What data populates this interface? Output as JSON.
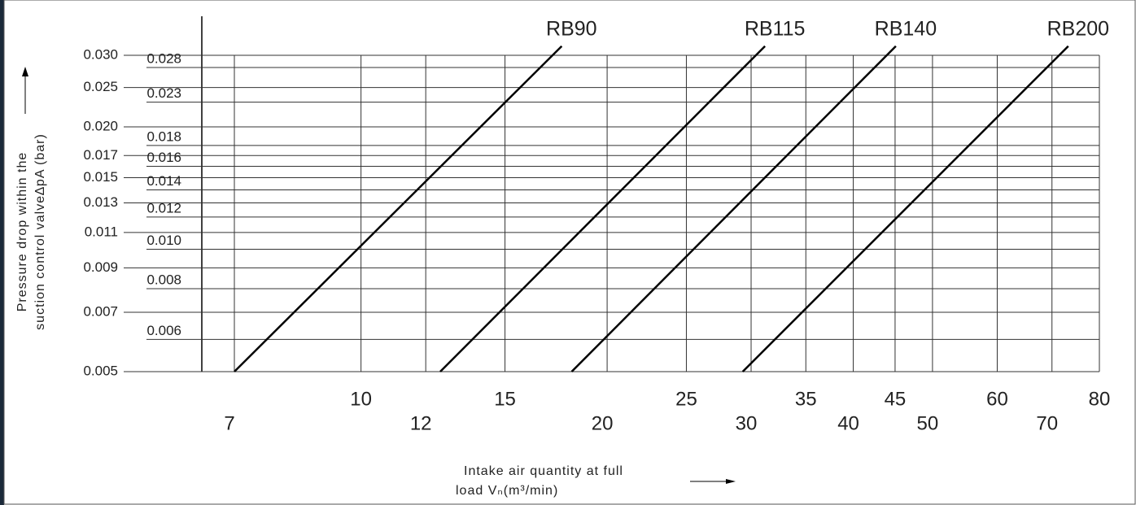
{
  "chart_data": {
    "type": "line",
    "x_label": [
      "Intake air quantity at full",
      "load Vₙ(m³/min)"
    ],
    "y_label": [
      "Pressure drop within the",
      "suction control valve∆pA (bar)"
    ],
    "xscale": "log",
    "yscale": "log",
    "grid": true,
    "xlim": [
      7,
      80
    ],
    "xticks": [
      7,
      10,
      12,
      15,
      20,
      25,
      30,
      35,
      40,
      45,
      50,
      60,
      70,
      80
    ],
    "ylim": [
      0.005,
      0.03
    ],
    "yticks": [
      {
        "value": 0.03,
        "label": "0.030"
      },
      {
        "value": 0.028,
        "label": "0.028"
      },
      {
        "value": 0.025,
        "label": "0.025"
      },
      {
        "value": 0.023,
        "label": "0.023"
      },
      {
        "value": 0.02,
        "label": "0.020"
      },
      {
        "value": 0.018,
        "label": "0.018"
      },
      {
        "value": 0.017,
        "label": "0.017"
      },
      {
        "value": 0.016,
        "label": "0.016"
      },
      {
        "value": 0.015,
        "label": "0.015"
      },
      {
        "value": 0.014,
        "label": "0.014"
      },
      {
        "value": 0.013,
        "label": "0.013"
      },
      {
        "value": 0.012,
        "label": "0.012"
      },
      {
        "value": 0.011,
        "label": "0.011"
      },
      {
        "value": 0.01,
        "label": "0.010"
      },
      {
        "value": 0.009,
        "label": "0.009"
      },
      {
        "value": 0.008,
        "label": "0.008"
      },
      {
        "value": 0.007,
        "label": "0.007"
      },
      {
        "value": 0.006,
        "label": "0.006"
      },
      {
        "value": 0.005,
        "label": "0.005"
      }
    ],
    "series": [
      {
        "name": "RB90",
        "color": "#000000",
        "x": [
          7,
          17.6
        ],
        "values": [
          0.005,
          0.0316
        ]
      },
      {
        "name": "RB115",
        "color": "#000000",
        "x": [
          12.5,
          31.2
        ],
        "values": [
          0.005,
          0.0316
        ]
      },
      {
        "name": "RB140",
        "color": "#000000",
        "x": [
          18.1,
          45.1
        ],
        "values": [
          0.005,
          0.0316
        ]
      },
      {
        "name": "RB200",
        "color": "#000000",
        "x": [
          29.3,
          73.3
        ],
        "values": [
          0.005,
          0.0316
        ]
      }
    ]
  }
}
